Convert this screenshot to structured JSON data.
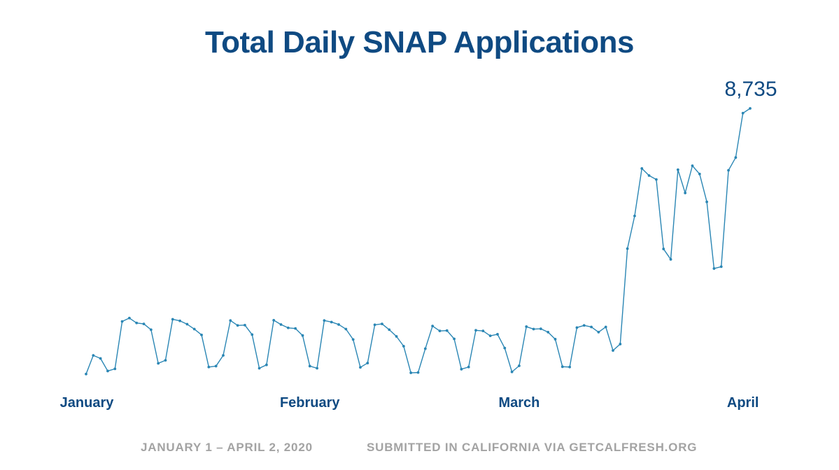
{
  "chart_data": {
    "type": "line",
    "title": "Total Daily SNAP Applications",
    "xlabel": "",
    "ylabel": "",
    "grid": false,
    "legend": "none",
    "tick_labels": [
      "January",
      "February",
      "March",
      "April"
    ],
    "tick_days": [
      1,
      32,
      61,
      92
    ],
    "x": [
      1,
      2,
      3,
      4,
      5,
      6,
      7,
      8,
      9,
      10,
      11,
      12,
      13,
      14,
      15,
      16,
      17,
      18,
      19,
      20,
      21,
      22,
      23,
      24,
      25,
      26,
      27,
      28,
      29,
      30,
      31,
      32,
      33,
      34,
      35,
      36,
      37,
      38,
      39,
      40,
      41,
      42,
      43,
      44,
      45,
      46,
      47,
      48,
      49,
      50,
      51,
      52,
      53,
      54,
      55,
      56,
      57,
      58,
      59,
      60,
      61,
      62,
      63,
      64,
      65,
      66,
      67,
      68,
      69,
      70,
      71,
      72,
      73,
      74,
      75,
      76,
      77,
      78,
      79,
      80,
      81,
      82,
      83,
      84,
      85,
      86,
      87,
      88,
      89,
      90,
      91,
      92,
      93
    ],
    "values": [
      50,
      660,
      560,
      150,
      220,
      1770,
      1880,
      1720,
      1690,
      1500,
      400,
      500,
      1840,
      1790,
      1680,
      1520,
      1330,
      280,
      310,
      660,
      1800,
      1640,
      1650,
      1340,
      240,
      350,
      1810,
      1670,
      1560,
      1540,
      1310,
      310,
      240,
      1800,
      1750,
      1670,
      1520,
      1180,
      270,
      410,
      1660,
      1690,
      1500,
      1280,
      960,
      90,
      100,
      880,
      1620,
      1460,
      1470,
      1200,
      210,
      280,
      1480,
      1460,
      1300,
      1350,
      900,
      120,
      320,
      1600,
      1520,
      1530,
      1420,
      1190,
      290,
      280,
      1570,
      1640,
      1590,
      1420,
      1590,
      820,
      1030,
      4150,
      5220,
      6770,
      6540,
      6410,
      4140,
      3800,
      6730,
      5970,
      6860,
      6590,
      5680,
      3500,
      3560,
      6710,
      7130,
      8580,
      8735
    ],
    "ylim": [
      0,
      8735
    ],
    "xlim": [
      1,
      93
    ],
    "annotation": "8,735",
    "color": "#2a86b4"
  },
  "footer": {
    "left": "JANUARY 1 – APRIL 2, 2020",
    "right": "SUBMITTED IN CALIFORNIA VIA GETCALFRESH.ORG"
  },
  "colors": {
    "title": "#0f4a82",
    "line": "#2a86b4",
    "footer": "#a3a3a3"
  }
}
